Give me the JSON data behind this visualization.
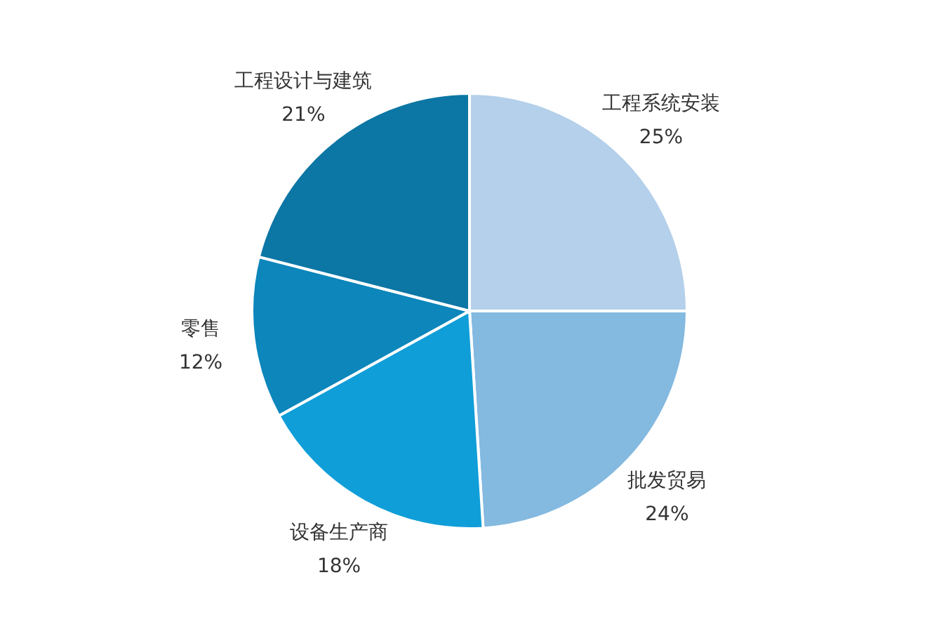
{
  "chart_data": {
    "type": "pie",
    "categories": [
      "工程系统安装",
      "批发贸易",
      "设备生产商",
      "零售",
      "工程设计与建筑"
    ],
    "values": [
      25,
      24,
      18,
      12,
      21
    ],
    "colors": [
      "#b4d0ea",
      "#84b9e0",
      "#109ed8",
      "#0c86bb",
      "#0c76a5"
    ],
    "value_labels": [
      "25%",
      "24%",
      "18%",
      "12%",
      "21%"
    ],
    "legend": false
  }
}
